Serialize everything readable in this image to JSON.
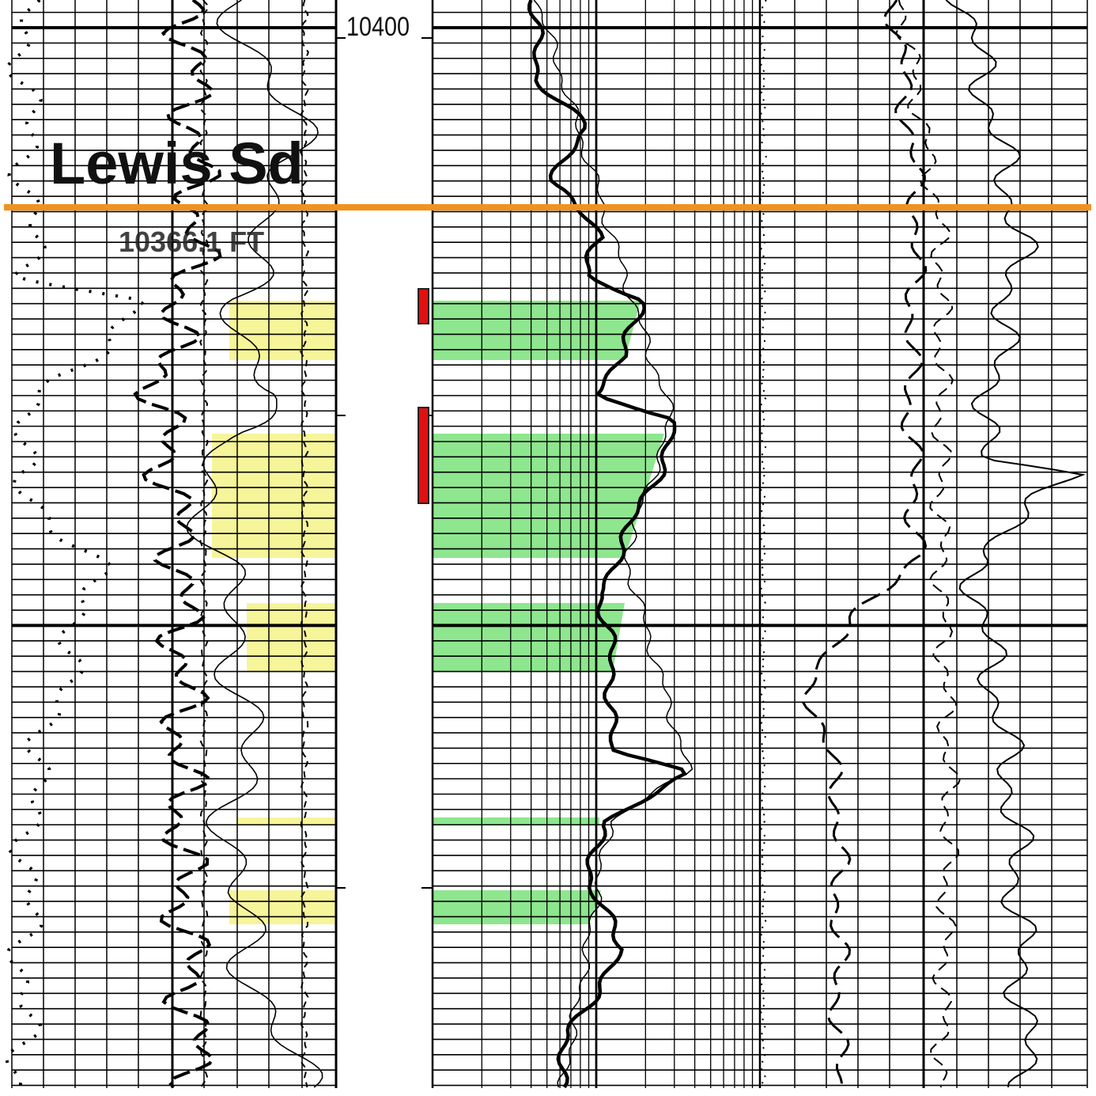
{
  "depth_label": "10400",
  "formation": {
    "name": "Lewis Sd",
    "depth": "10366.1 FT"
  }
}
